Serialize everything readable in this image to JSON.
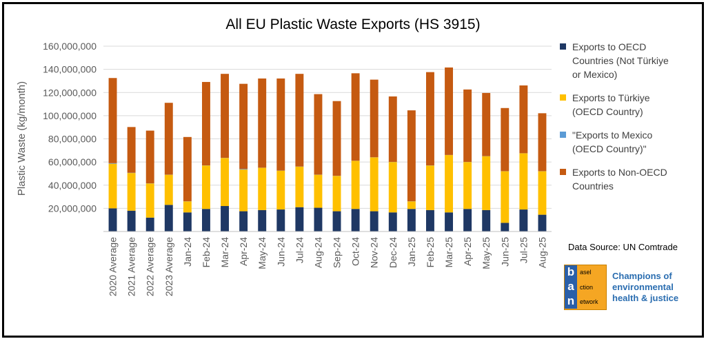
{
  "chart_data": {
    "type": "bar",
    "stacked": true,
    "title": "All EU Plastic Waste Exports (HS 3915)",
    "xlabel": "",
    "ylabel": "Plastic Waste (kg/month)",
    "ylim": [
      0,
      160000000
    ],
    "yticks": [
      0,
      20000000,
      40000000,
      60000000,
      80000000,
      100000000,
      120000000,
      140000000,
      160000000
    ],
    "ytick_labels": [
      "",
      "20,000,000",
      "40,000,000",
      "60,000,000",
      "80,000,000",
      "100,000,000",
      "120,000,000",
      "140,000,000",
      "160,000,000"
    ],
    "gridlines": true,
    "legend_position": "right",
    "categories": [
      "2020 Average",
      "2021 Average",
      "2022 Average",
      "2023 Average",
      "Jan-24",
      "Feb-24",
      "Mar-24",
      "Apr-24",
      "May-24",
      "Jun-24",
      "Jul-24",
      "Aug-24",
      "Sep-24",
      "Oct-24",
      "Nov-24",
      "Dec-24",
      "Jan-25",
      "Feb-25",
      "Mar-25",
      "Apr-25",
      "May-25",
      "Jun-25",
      "Jul-25",
      "Aug-25"
    ],
    "series": [
      {
        "name": "Exports to OECD Countries (Not Türkiye or Mexico)",
        "color": "#1f3864",
        "values": [
          20000000,
          18000000,
          12000000,
          23000000,
          16500000,
          19500000,
          22000000,
          17500000,
          18500000,
          19000000,
          21000000,
          20500000,
          17500000,
          19500000,
          17500000,
          16500000,
          19500000,
          18500000,
          16500000,
          19500000,
          18500000,
          7500000,
          19000000,
          14500000
        ]
      },
      {
        "name": "Exports to Türkiye (OECD Country)",
        "color": "#ffc000",
        "values": [
          38500000,
          32500000,
          29500000,
          26000000,
          9500000,
          37500000,
          41500000,
          36000000,
          36500000,
          33500000,
          35000000,
          28500000,
          30500000,
          41500000,
          46500000,
          43500000,
          6500000,
          38500000,
          49500000,
          40500000,
          46500000,
          44500000,
          48500000,
          37500000
        ]
      },
      {
        "name": "\"Exports to Mexico (OECD Country)\"",
        "color": "#5b9bd5",
        "values": [
          500000,
          200000,
          100000,
          100000,
          100000,
          100000,
          100000,
          500000,
          100000,
          100000,
          100000,
          100000,
          100000,
          100000,
          100000,
          100000,
          100000,
          100000,
          100000,
          100000,
          100000,
          100000,
          100000,
          100000
        ]
      },
      {
        "name": "Exports to Non-OECD Countries",
        "color": "#c55a11",
        "values": [
          73500000,
          39500000,
          45500000,
          62000000,
          55500000,
          72000000,
          72500000,
          73500000,
          77000000,
          79500000,
          80000000,
          69500000,
          64500000,
          75500000,
          67000000,
          56500000,
          78500000,
          80500000,
          75500000,
          62500000,
          54500000,
          54500000,
          58500000,
          50000000
        ]
      }
    ]
  },
  "source": {
    "text": "Data Source: UN Comtrade"
  },
  "logo": {
    "letters": [
      "b",
      "a",
      "n"
    ],
    "words": [
      "asel",
      "ction",
      "etwork"
    ],
    "tagline": "Champions of\nenvironmental\nhealth & justice"
  }
}
